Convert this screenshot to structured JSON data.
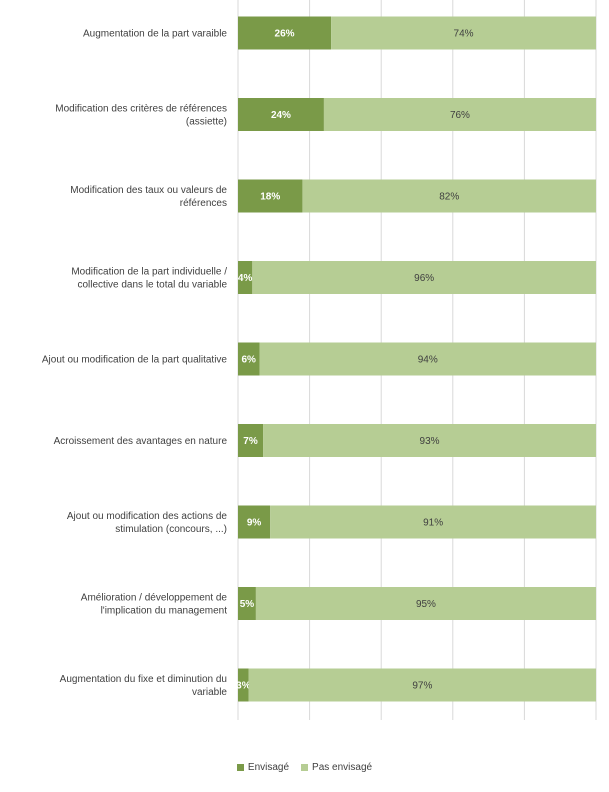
{
  "chart_data": {
    "type": "bar",
    "orientation": "horizontal",
    "stacked": true,
    "categories": [
      [
        "Augmentation de la part varaible"
      ],
      [
        "Modification des critères de références",
        "(assiette)"
      ],
      [
        "Modification des taux ou valeurs de",
        "références"
      ],
      [
        "Modification de la part individuelle /",
        "collective dans le total du variable"
      ],
      [
        "Ajout ou modification de la part qualitative"
      ],
      [
        "Acroissement des avantages en nature"
      ],
      [
        "Ajout ou modification des actions de",
        "stimulation (concours, ...)"
      ],
      [
        "Amélioration / développement de",
        "l'implication du management"
      ],
      [
        "Augmentation du fixe et diminution du",
        "variable"
      ]
    ],
    "series": [
      {
        "name": "Envisagé",
        "color": "#7a9a48",
        "label_color": "#ffffff",
        "values": [
          26,
          24,
          18,
          4,
          6,
          7,
          9,
          5,
          3
        ],
        "labels": [
          "26%",
          "24%",
          "18%",
          "4%",
          "6%",
          "7%",
          "9%",
          "5%",
          "3%"
        ]
      },
      {
        "name": "Pas envisagé",
        "color": "#b6cd94",
        "label_color": "#404040",
        "values": [
          74,
          76,
          82,
          96,
          94,
          93,
          91,
          95,
          97
        ],
        "labels": [
          "74%",
          "76%",
          "82%",
          "96%",
          "94%",
          "93%",
          "91%",
          "95%",
          "97%"
        ]
      }
    ],
    "xlim": [
      0,
      100
    ],
    "grid": true,
    "legend_position": "bottom"
  }
}
